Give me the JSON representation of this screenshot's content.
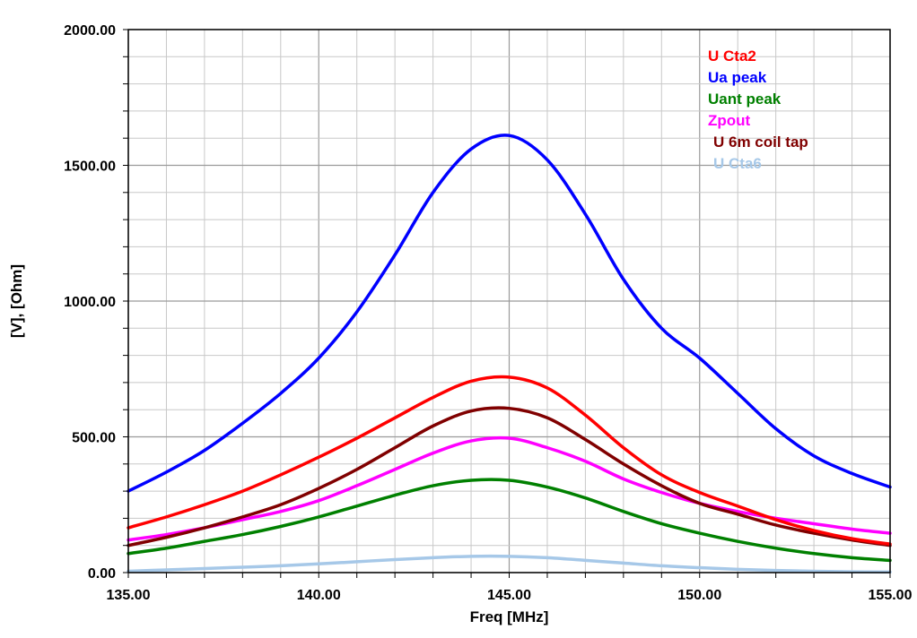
{
  "chart_data": {
    "type": "line",
    "title": "",
    "xlabel": "Freq [MHz]",
    "ylabel": "[V], [Ohm]",
    "xlim": [
      135,
      155
    ],
    "ylim": [
      0,
      2000
    ],
    "x_ticks": [
      135,
      140,
      145,
      150,
      155
    ],
    "x_tick_labels": [
      "135.00",
      "140.00",
      "145.00",
      "150.00",
      "155.00"
    ],
    "y_ticks": [
      0,
      500,
      1000,
      1500,
      2000
    ],
    "y_tick_labels": [
      "0.00",
      "500.00",
      "1000.00",
      "1500.00",
      "2000.00"
    ],
    "grid": true,
    "legend_position": "top-right",
    "x": [
      135,
      136,
      137,
      138,
      139,
      140,
      141,
      142,
      143,
      144,
      145,
      146,
      147,
      148,
      149,
      150,
      151,
      152,
      153,
      154,
      155
    ],
    "series": [
      {
        "name": "U Cta2",
        "color": "#ff0000",
        "values": [
          165,
          205,
          250,
          300,
          360,
          425,
          495,
          570,
          645,
          705,
          720,
          680,
          580,
          460,
          360,
          295,
          245,
          195,
          155,
          125,
          105
        ]
      },
      {
        "name": "Ua peak",
        "color": "#0000ff",
        "values": [
          300,
          370,
          450,
          550,
          660,
          790,
          960,
          1170,
          1400,
          1560,
          1610,
          1520,
          1320,
          1080,
          900,
          790,
          660,
          530,
          430,
          365,
          315
        ]
      },
      {
        "name": "Uant peak",
        "color": "#008000",
        "values": [
          70,
          90,
          115,
          140,
          170,
          205,
          245,
          285,
          320,
          340,
          340,
          315,
          275,
          225,
          180,
          145,
          115,
          90,
          70,
          55,
          45
        ]
      },
      {
        "name": "Zpout",
        "color": "#ff00ff",
        "values": [
          120,
          140,
          165,
          195,
          225,
          265,
          320,
          380,
          440,
          485,
          495,
          460,
          410,
          345,
          295,
          255,
          225,
          200,
          180,
          160,
          145
        ]
      },
      {
        "name": "U 6m coil tap",
        "color": "#800000",
        "values": [
          100,
          130,
          165,
          205,
          250,
          310,
          380,
          460,
          540,
          595,
          605,
          570,
          490,
          400,
          320,
          255,
          215,
          175,
          145,
          120,
          100
        ]
      },
      {
        "name": "U Cta6",
        "color": "#a6c8e8",
        "values": [
          5,
          10,
          15,
          20,
          25,
          32,
          40,
          48,
          55,
          60,
          60,
          55,
          45,
          35,
          25,
          18,
          12,
          8,
          5,
          3,
          2
        ]
      }
    ]
  }
}
